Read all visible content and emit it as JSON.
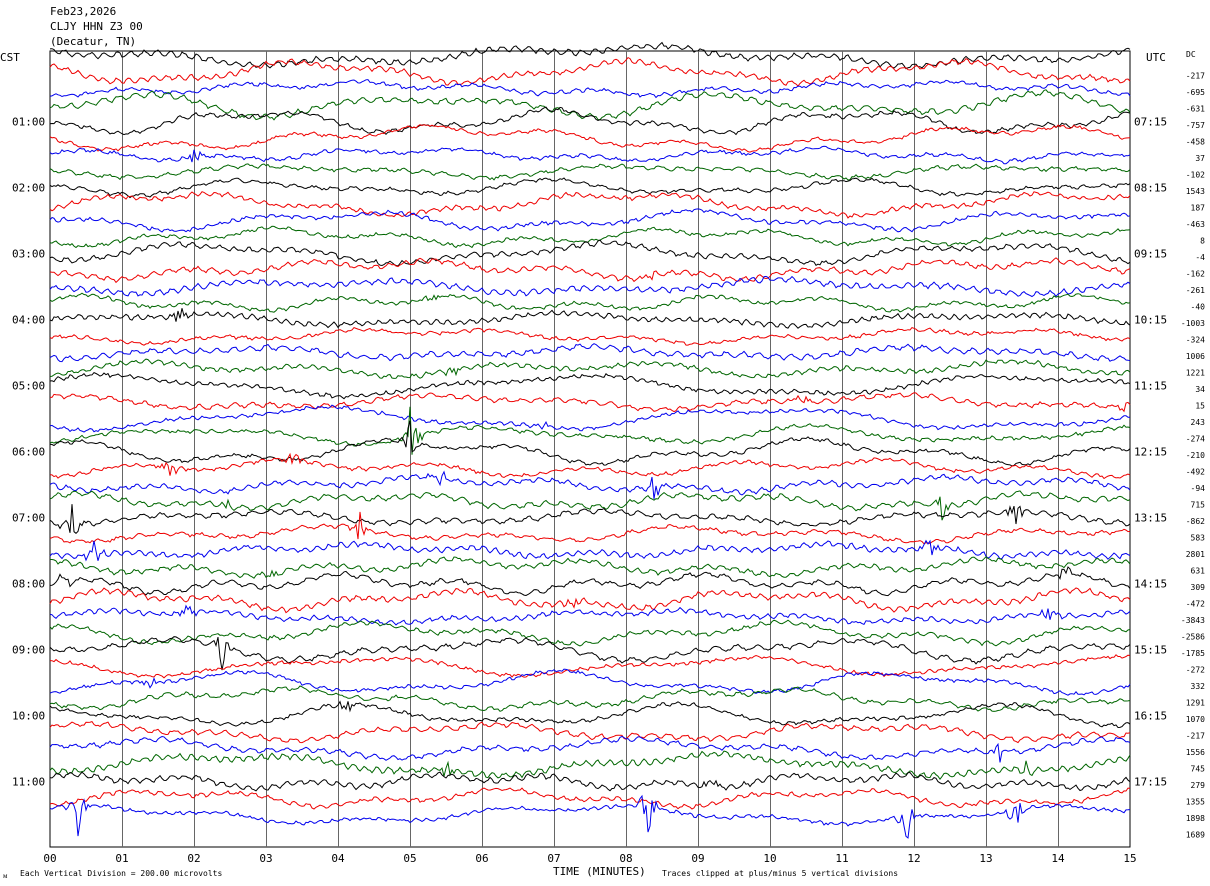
{
  "header": {
    "date": "Feb23,2026",
    "station": "CLJY HHN Z3 00",
    "location": "(Decatur, TN)"
  },
  "labels": {
    "left_tz": "CST",
    "right_tz": "UTC",
    "dc_header": "DC",
    "x_axis_title": "TIME (MINUTES)",
    "scale_note": "Each Vertical Division =  200.00 microvolts",
    "clip_note": "Traces clipped at plus/minus 5 vertical divisions",
    "corner_mark": "ᴍ"
  },
  "colors": {
    "trace_cycle": [
      "#000000",
      "#ee0000",
      "#0000ee",
      "#006600"
    ],
    "grid": "#000000",
    "background": "#ffffff"
  },
  "chart_data": {
    "type": "line",
    "traces_per_hour": 4,
    "trace_minutes": 15,
    "x_ticks": [
      "00",
      "01",
      "02",
      "03",
      "04",
      "05",
      "06",
      "07",
      "08",
      "09",
      "10",
      "11",
      "12",
      "13",
      "14",
      "15"
    ],
    "xlim": [
      0,
      15
    ],
    "left_time_labels": [
      "01:00",
      "02:00",
      "03:00",
      "04:00",
      "05:00",
      "06:00",
      "07:00",
      "08:00",
      "09:00",
      "10:00",
      "11:00"
    ],
    "right_time_labels": [
      "07:15",
      "08:15",
      "09:15",
      "10:15",
      "11:15",
      "12:15",
      "13:15",
      "14:15",
      "15:15",
      "16:15",
      "17:15"
    ],
    "dc_offsets": [
      "-217",
      "-695",
      "-631",
      "-757",
      "-458",
      "37",
      "-102",
      "1543",
      "187",
      "-463",
      "8",
      "-4",
      "-162",
      "-261",
      "-40",
      "-1003",
      "-324",
      "1006",
      "1221",
      "34",
      "15",
      "243",
      "-274",
      "-210",
      "-492",
      "-94",
      "715",
      "-862",
      "583",
      "2801",
      "631",
      "309",
      "-472",
      "-3843",
      "-2586",
      "-1785",
      "-272",
      "332",
      "1291",
      "1070",
      "-217",
      "1556",
      "745",
      "279",
      "1355",
      "1898",
      "1689"
    ],
    "events": [
      {
        "trace": 6,
        "minute": 2.0,
        "amp": 1.4
      },
      {
        "trace": 13,
        "minute": 8.3,
        "amp": 1.0
      },
      {
        "trace": 15,
        "minute": 5.3,
        "amp": 1.2
      },
      {
        "trace": 16,
        "minute": 1.8,
        "amp": 1.3
      },
      {
        "trace": 19,
        "minute": 5.6,
        "amp": 1.1
      },
      {
        "trace": 21,
        "minute": 10.4,
        "amp": 1.2
      },
      {
        "trace": 21,
        "minute": 14.9,
        "amp": 1.3
      },
      {
        "trace": 22,
        "minute": 6.9,
        "amp": 1.0
      },
      {
        "trace": 23,
        "minute": 5.0,
        "amp": 4.5
      },
      {
        "trace": 24,
        "minute": 5.0,
        "amp": 2.5
      },
      {
        "trace": 25,
        "minute": 1.7,
        "amp": 1.8
      },
      {
        "trace": 25,
        "minute": 3.4,
        "amp": 1.4
      },
      {
        "trace": 26,
        "minute": 5.4,
        "amp": 1.6
      },
      {
        "trace": 26,
        "minute": 8.4,
        "amp": 1.8
      },
      {
        "trace": 27,
        "minute": 2.4,
        "amp": 1.5
      },
      {
        "trace": 27,
        "minute": 12.4,
        "amp": 2.0
      },
      {
        "trace": 28,
        "minute": 0.3,
        "amp": 2.5
      },
      {
        "trace": 28,
        "minute": 13.4,
        "amp": 2.2
      },
      {
        "trace": 29,
        "minute": 4.3,
        "amp": 2.0
      },
      {
        "trace": 30,
        "minute": 0.6,
        "amp": 2.0
      },
      {
        "trace": 30,
        "minute": 12.2,
        "amp": 1.6
      },
      {
        "trace": 31,
        "minute": 3.1,
        "amp": 1.8
      },
      {
        "trace": 32,
        "minute": 0.2,
        "amp": 1.6
      },
      {
        "trace": 32,
        "minute": 14.1,
        "amp": 1.5
      },
      {
        "trace": 33,
        "minute": 7.3,
        "amp": 1.5
      },
      {
        "trace": 34,
        "minute": 1.9,
        "amp": 1.5
      },
      {
        "trace": 34,
        "minute": 13.9,
        "amp": 1.8
      },
      {
        "trace": 36,
        "minute": 2.4,
        "amp": 3.0
      },
      {
        "trace": 38,
        "minute": 1.4,
        "amp": 1.4
      },
      {
        "trace": 40,
        "minute": 4.1,
        "amp": 1.4
      },
      {
        "trace": 42,
        "minute": 13.2,
        "amp": 1.7
      },
      {
        "trace": 43,
        "minute": 5.5,
        "amp": 1.5
      },
      {
        "trace": 43,
        "minute": 13.6,
        "amp": 1.3
      },
      {
        "trace": 44,
        "minute": 9.2,
        "amp": 1.3
      },
      {
        "trace": 46,
        "minute": 0.4,
        "amp": 4.0
      },
      {
        "trace": 46,
        "minute": 8.3,
        "amp": 3.5
      },
      {
        "trace": 46,
        "minute": 11.9,
        "amp": 3.0
      },
      {
        "trace": 46,
        "minute": 13.4,
        "amp": 3.0
      }
    ]
  }
}
